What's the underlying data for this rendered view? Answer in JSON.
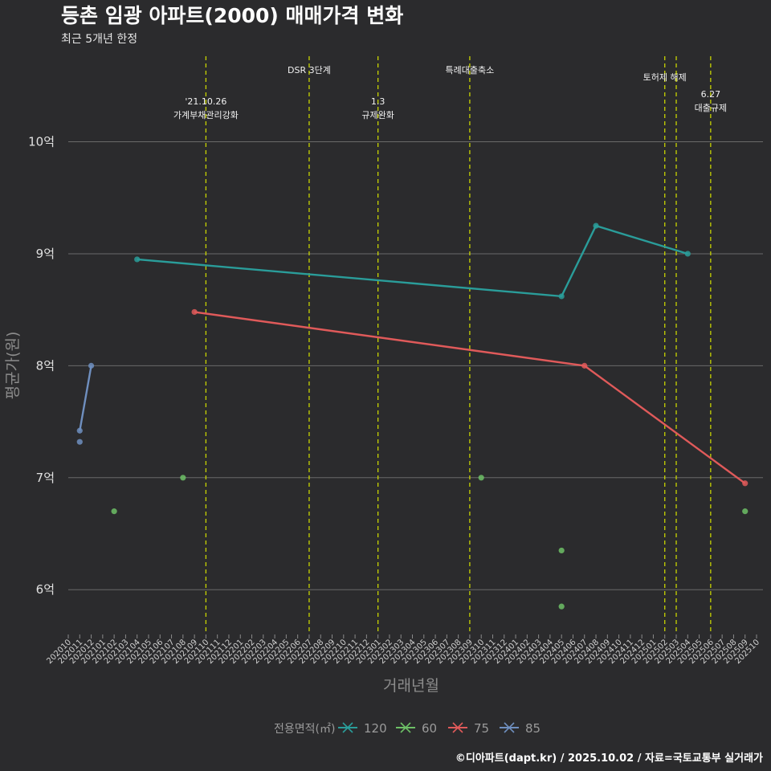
{
  "chart_data": {
    "type": "line",
    "title": "등촌 임광 아파트(2000) 매매가격 변화",
    "subtitle": "최근 5개년 한정",
    "xlabel": "거래년월",
    "ylabel": "평균가(원)",
    "caption": "©디아파트(dapt.kr) / 2025.10.02 / 자료=국토교통부 실거래가",
    "y_ticks": [
      {
        "value": 6,
        "label": "6억"
      },
      {
        "value": 7,
        "label": "7억"
      },
      {
        "value": 8,
        "label": "8억"
      },
      {
        "value": 9,
        "label": "9억"
      },
      {
        "value": 10,
        "label": "10억"
      }
    ],
    "ylim": [
      5.6,
      10.8
    ],
    "x_categories": [
      "202010",
      "202011",
      "202012",
      "202101",
      "202102",
      "202103",
      "202104",
      "202105",
      "202106",
      "202107",
      "202108",
      "202109",
      "202110",
      "202111",
      "202112",
      "202201",
      "202202",
      "202203",
      "202204",
      "202205",
      "202206",
      "202207",
      "202208",
      "202209",
      "202210",
      "202211",
      "202212",
      "202301",
      "202302",
      "202303",
      "202304",
      "202305",
      "202306",
      "202307",
      "202308",
      "202309",
      "202310",
      "202311",
      "202312",
      "202401",
      "202402",
      "202403",
      "202404",
      "202405",
      "202406",
      "202407",
      "202408",
      "202409",
      "202410",
      "202411",
      "202412",
      "202501",
      "202502",
      "202503",
      "202504",
      "202505",
      "202506",
      "202507",
      "202508",
      "202509",
      "202510"
    ],
    "legend_title": "전용면적(㎡)",
    "series": [
      {
        "name": "120",
        "color": "#2a9d9a",
        "points": [
          {
            "x": "202104",
            "y": 8.95
          },
          {
            "x": "202405",
            "y": 8.62
          },
          {
            "x": "202408",
            "y": 9.25
          },
          {
            "x": "202504",
            "y": 9.0
          }
        ]
      },
      {
        "name": "60",
        "color": "#6dc066",
        "points": [
          {
            "x": "202102",
            "y": 6.7
          },
          {
            "x": "202108",
            "y": 7.0
          },
          {
            "x": "202310",
            "y": 7.0
          },
          {
            "x": "202405",
            "y": 6.35
          },
          {
            "x": "202405",
            "y": 5.85
          },
          {
            "x": "202509",
            "y": 6.7
          }
        ],
        "points_only": true
      },
      {
        "name": "75",
        "color": "#e05a5a",
        "points": [
          {
            "x": "202109",
            "y": 8.48
          },
          {
            "x": "202407",
            "y": 8.0
          },
          {
            "x": "202509",
            "y": 6.95
          }
        ]
      },
      {
        "name": "85",
        "color": "#6f8fbf",
        "points": [
          {
            "x": "202011",
            "y": 7.42
          },
          {
            "x": "202011",
            "y": 7.32
          },
          {
            "x": "202012",
            "y": 8.0
          }
        ],
        "line_points": [
          {
            "x": "202011",
            "y": 7.42
          },
          {
            "x": "202012",
            "y": 8.0
          }
        ]
      }
    ],
    "events": [
      {
        "x": "202110",
        "lines": [
          "'21.10.26",
          "가계부채관리강화"
        ],
        "row": 1
      },
      {
        "x": "202207",
        "lines": [
          "DSR 3단계"
        ],
        "row": 2
      },
      {
        "x": "202301",
        "lines": [
          "1.3",
          "규제완화"
        ],
        "row": 1
      },
      {
        "x": "202309",
        "lines": [
          "특례대출축소"
        ],
        "row": 2
      },
      {
        "x": "202502",
        "lines": [
          "토허제 해제"
        ],
        "row": 0
      },
      {
        "x": "202503",
        "lines": [],
        "row": 0
      },
      {
        "x": "202506",
        "lines": [
          "6.27",
          "대출규제"
        ],
        "row": 3
      }
    ]
  }
}
